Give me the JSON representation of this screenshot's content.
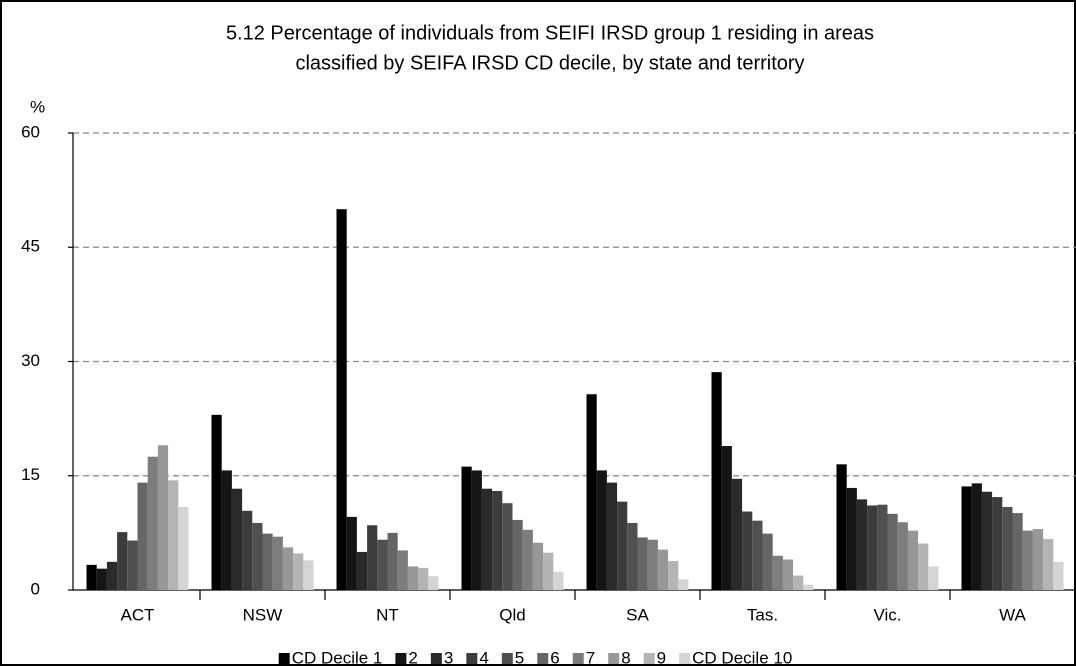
{
  "chart_data": {
    "type": "bar",
    "title": [
      "5.12  Percentage of individuals from SEIFI IRSD group 1 residing in areas",
      "classified by SEIFA IRSD CD decile, by state and territory"
    ],
    "y_unit": "%",
    "categories": [
      "ACT",
      "NSW",
      "NT",
      "Qld",
      "SA",
      "Tas.",
      "Vic.",
      "WA"
    ],
    "ylim": [
      0,
      60
    ],
    "yticks": [
      0,
      15,
      30,
      45,
      60
    ],
    "grid": true,
    "series": [
      {
        "name": "CD Decile 1",
        "color": "#000000",
        "values": [
          3.3,
          23.0,
          50.0,
          16.2,
          25.7,
          28.6,
          16.5,
          13.6
        ]
      },
      {
        "name": "2",
        "color": "#151515",
        "values": [
          2.8,
          15.7,
          9.6,
          15.7,
          15.7,
          18.9,
          13.4,
          14.0
        ]
      },
      {
        "name": "3",
        "color": "#2a2a2a",
        "values": [
          3.7,
          13.3,
          5.0,
          13.3,
          14.1,
          14.6,
          11.9,
          12.9
        ]
      },
      {
        "name": "4",
        "color": "#3c3c3c",
        "values": [
          7.6,
          10.4,
          8.5,
          13.0,
          11.6,
          10.3,
          11.1,
          12.2
        ]
      },
      {
        "name": "5",
        "color": "#505050",
        "values": [
          6.5,
          8.8,
          6.6,
          11.4,
          8.8,
          9.1,
          11.2,
          10.9
        ]
      },
      {
        "name": "6",
        "color": "#666666",
        "values": [
          14.1,
          7.4,
          7.5,
          9.2,
          6.9,
          7.4,
          10.0,
          10.1
        ]
      },
      {
        "name": "7",
        "color": "#7d7d7d",
        "values": [
          17.5,
          7.0,
          5.2,
          7.9,
          6.6,
          4.5,
          8.9,
          7.8
        ]
      },
      {
        "name": "8",
        "color": "#979797",
        "values": [
          19.0,
          5.6,
          3.1,
          6.2,
          5.3,
          4.0,
          7.8,
          8.0
        ]
      },
      {
        "name": "9",
        "color": "#b4b4b4",
        "values": [
          14.4,
          4.8,
          2.9,
          4.9,
          3.8,
          1.9,
          6.1,
          6.7
        ]
      },
      {
        "name": "CD Decile 10",
        "color": "#d4d4d4",
        "values": [
          10.9,
          3.9,
          1.8,
          2.4,
          1.4,
          0.7,
          3.1,
          3.7
        ]
      }
    ]
  }
}
